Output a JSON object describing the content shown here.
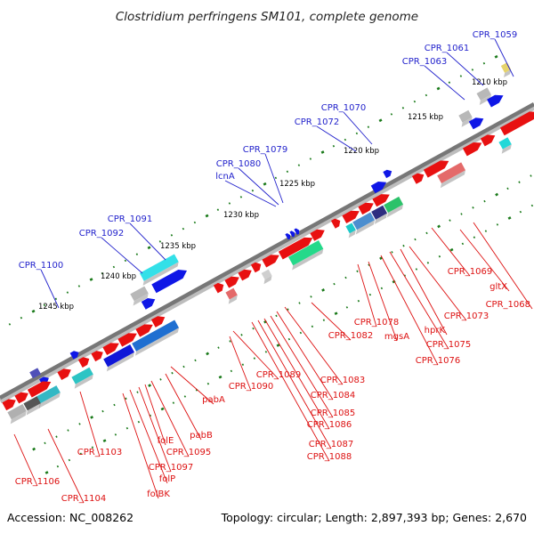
{
  "header": {
    "title": "Clostridium perfringens SM101, complete genome"
  },
  "footer": {
    "accession": "Accession: NC_008262",
    "summary": "Topology: circular; Length: 2,897,393 bp; Genes: 2,670"
  },
  "colors": {
    "plus_label": "#2222cc",
    "minus_label": "#dd1111",
    "forward_gene": "#e81010",
    "reverse_gene": "#1010e0",
    "backbone": "#777777",
    "tick": "#1a7a1a"
  },
  "scale": {
    "ticks": [
      {
        "label": "1210 kbp"
      },
      {
        "label": "1215 kbp"
      },
      {
        "label": "1220 kbp"
      },
      {
        "label": "1225 kbp"
      },
      {
        "label": "1230 kbp"
      },
      {
        "label": "1235 kbp"
      },
      {
        "label": "1240 kbp"
      },
      {
        "label": "1245 kbp"
      }
    ]
  },
  "labels_top": [
    "CPR_1059",
    "CPR_1061",
    "CPR_1063",
    "CPR_1070",
    "CPR_1072",
    "CPR_1079",
    "CPR_1080",
    "lcnA",
    "CPR_1091",
    "CPR_1092",
    "CPR_1100"
  ],
  "labels_bottom": [
    "gltX",
    "CPR_1068",
    "CPR_1069",
    "CPR_1073",
    "hprK",
    "CPR_1075",
    "CPR_1076",
    "mgsA",
    "CPR_1078",
    "CPR_1082",
    "CPR_1083",
    "CPR_1084",
    "CPR_1085",
    "CPR_1086",
    "CPR_1087",
    "CPR_1088",
    "CPR_1089",
    "CPR_1090",
    "pabA",
    "pabB",
    "folE",
    "CPR_1095",
    "CPR_1097",
    "folP",
    "folBK",
    "CPR_1103",
    "CPR_1104",
    "CPR_1106"
  ]
}
